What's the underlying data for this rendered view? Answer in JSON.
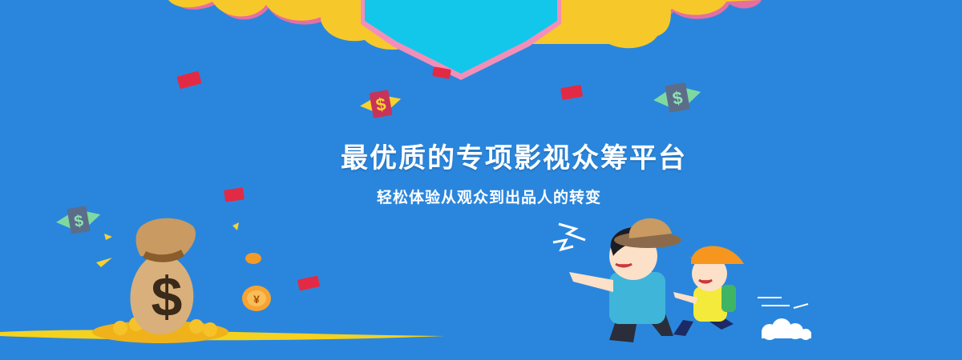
{
  "banner": {
    "headline": "最优质的专项影视众筹平台",
    "subline": "轻松体验从观众到出品人的转变",
    "background_color": "#2a86dc",
    "coin_char": "¥",
    "dollar_sign": "$"
  },
  "icons": [
    "cloud-banner",
    "money-bag-icon",
    "flying-cash-icon",
    "red-envelope-icon",
    "coin-icon",
    "children-illustration"
  ]
}
